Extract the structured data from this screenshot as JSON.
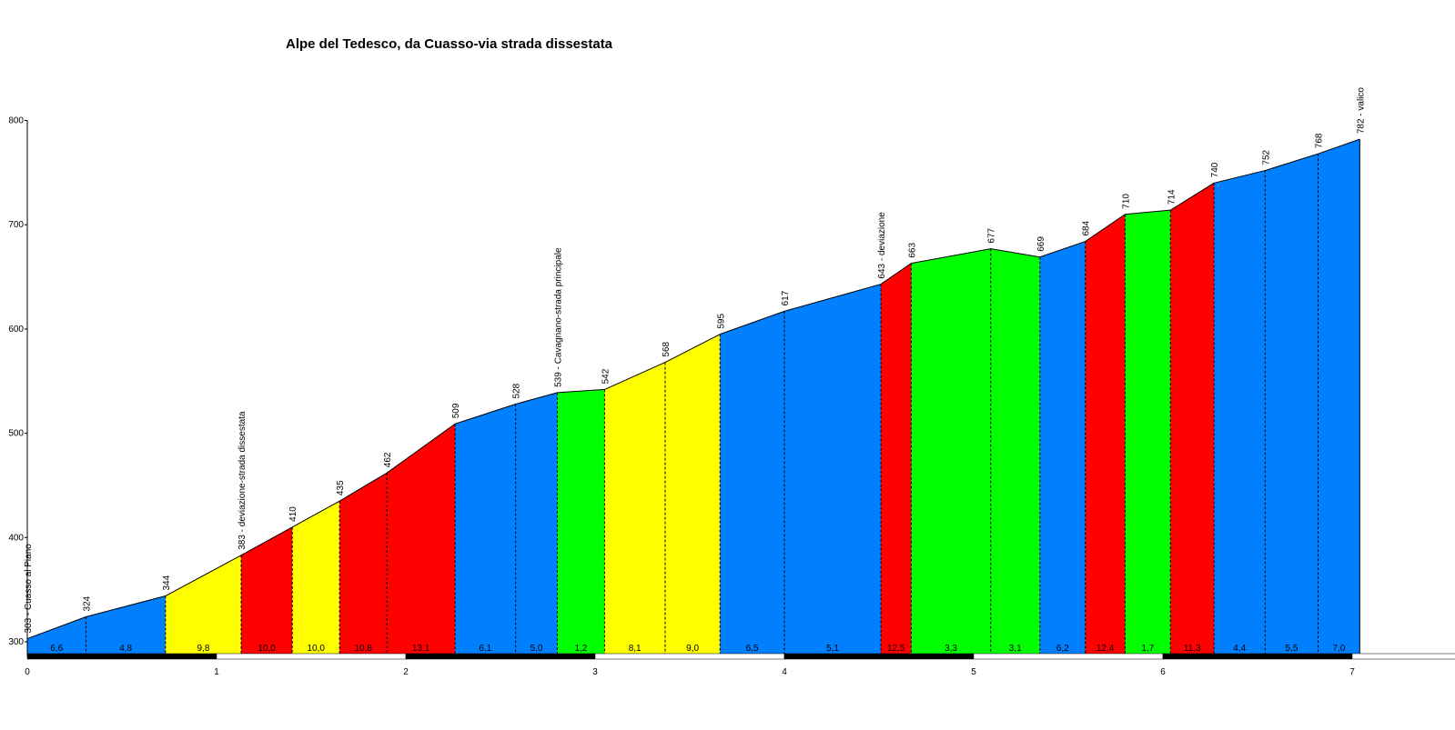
{
  "chart_data": {
    "type": "area",
    "title": "Alpe del Tedesco, da Cuasso-via strada dissestata",
    "xlabel": "",
    "ylabel": "",
    "xlim": [
      0,
      7.5
    ],
    "ylim": [
      290,
      800
    ],
    "x_ticks": [
      "0",
      "1",
      "2",
      "3",
      "4",
      "5",
      "6",
      "7"
    ],
    "y_ticks": [
      "300",
      "400",
      "500",
      "600",
      "700",
      "800"
    ],
    "grid": false,
    "legend": "none",
    "points": [
      {
        "x": 0.0,
        "y": 303,
        "label": "303 - Cuasso al Piano"
      },
      {
        "x": 0.31,
        "y": 324,
        "label": "324"
      },
      {
        "x": 0.73,
        "y": 344,
        "label": "344"
      },
      {
        "x": 1.13,
        "y": 383,
        "label": "383 - deviazione-strada dissestata"
      },
      {
        "x": 1.4,
        "y": 410,
        "label": "410"
      },
      {
        "x": 1.65,
        "y": 435,
        "label": "435"
      },
      {
        "x": 1.9,
        "y": 462,
        "label": "462"
      },
      {
        "x": 2.26,
        "y": 509,
        "label": "509"
      },
      {
        "x": 2.58,
        "y": 528,
        "label": "528"
      },
      {
        "x": 2.8,
        "y": 539,
        "label": "539 - Cavagnano-strada principale"
      },
      {
        "x": 3.05,
        "y": 542,
        "label": "542"
      },
      {
        "x": 3.37,
        "y": 568,
        "label": "568"
      },
      {
        "x": 3.66,
        "y": 595,
        "label": "595"
      },
      {
        "x": 4.0,
        "y": 617,
        "label": "617"
      },
      {
        "x": 4.51,
        "y": 643,
        "label": "643 - deviazione"
      },
      {
        "x": 4.67,
        "y": 663,
        "label": "663"
      },
      {
        "x": 5.09,
        "y": 677,
        "label": "677"
      },
      {
        "x": 5.35,
        "y": 669,
        "label": "669"
      },
      {
        "x": 5.59,
        "y": 684,
        "label": "684"
      },
      {
        "x": 5.8,
        "y": 710,
        "label": "710"
      },
      {
        "x": 6.04,
        "y": 714,
        "label": "714"
      },
      {
        "x": 6.27,
        "y": 740,
        "label": "740"
      },
      {
        "x": 6.54,
        "y": 752,
        "label": "752"
      },
      {
        "x": 6.82,
        "y": 768,
        "label": "768"
      },
      {
        "x": 7.04,
        "y": 782,
        "label": "782 - valico"
      }
    ],
    "gradients": [
      "6,6",
      "4,8",
      "9,8",
      "10,0",
      "10,0",
      "10,8",
      "13,1",
      "6,1",
      "5,0",
      "1,2",
      "8,1",
      "9,0",
      "6,5",
      "5,1",
      "12,5",
      "3,3",
      "3,1",
      "6,2",
      "12,4",
      "1,7",
      "11,3",
      "4,4",
      "5,5",
      "7,0"
    ],
    "segment_colors": [
      "#0080ff",
      "#0080ff",
      "#ffff00",
      "#ff0000",
      "#ffff00",
      "#ff0000",
      "#ff0000",
      "#0080ff",
      "#0080ff",
      "#00ff00",
      "#ffff00",
      "#ffff00",
      "#0080ff",
      "#0080ff",
      "#ff0000",
      "#00ff00",
      "#00ff00",
      "#0080ff",
      "#ff0000",
      "#00ff00",
      "#ff0000",
      "#0080ff",
      "#0080ff",
      "#0080ff"
    ]
  }
}
